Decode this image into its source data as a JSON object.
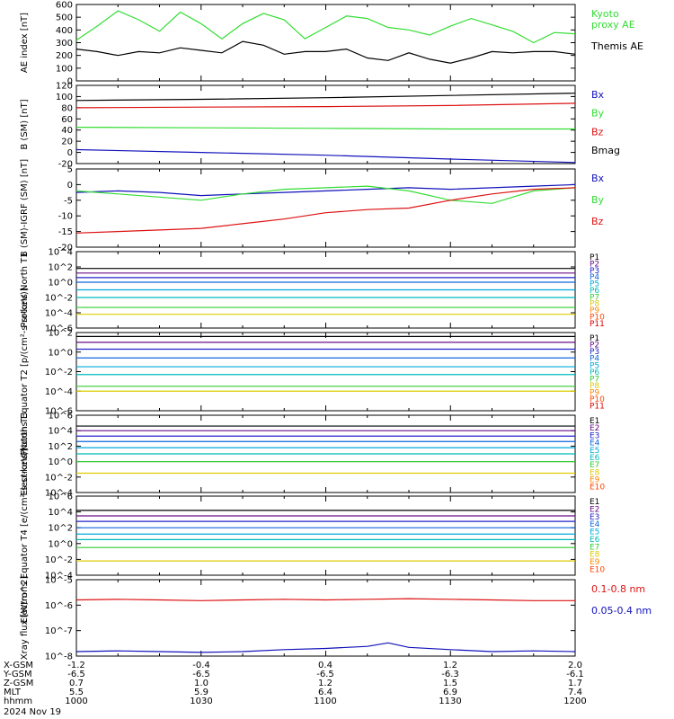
{
  "colors": {
    "black": "#000000",
    "green": "#33dd33",
    "red": "#dd1111",
    "blue": "#1111bb",
    "p_palette": [
      "#000000",
      "#6a0d8a",
      "#2222cc",
      "#1166dd",
      "#00aadd",
      "#00bbbb",
      "#33cc33",
      "#ddcc00",
      "#ff8800",
      "#ff4400",
      "#dd0000",
      "#aa0000"
    ]
  },
  "footer": {
    "rows": [
      {
        "label": "X-GSM",
        "values": [
          "-1.2",
          "-0.4",
          "0.4",
          "1.2",
          "2.0"
        ]
      },
      {
        "label": "Y-GSM",
        "values": [
          "-6.5",
          "-6.5",
          "-6.5",
          "-6.3",
          "-6.1"
        ]
      },
      {
        "label": "Z-GSM",
        "values": [
          "0.7",
          "1.0",
          "1.2",
          "1.5",
          "1.7"
        ]
      },
      {
        "label": "MLT",
        "values": [
          "5.5",
          "5.9",
          "6.4",
          "6.9",
          "7.4"
        ]
      },
      {
        "label": "hhmm",
        "values": [
          "1000",
          "1030",
          "1100",
          "1130",
          "1200"
        ]
      }
    ],
    "date": "2024 Nov 19"
  },
  "chart_data": [
    {
      "type": "line",
      "ylabel": "AE index [nT]",
      "ylim": [
        0,
        600
      ],
      "yticks": [
        "0",
        "100",
        "200",
        "300",
        "400",
        "500",
        "600"
      ],
      "series": [
        {
          "name": "Kyoto proxy AE",
          "legend": [
            "Kyoto",
            "proxy AE"
          ],
          "color": "green",
          "x": [
            0,
            5,
            10,
            15,
            20,
            25,
            30,
            35,
            40,
            45,
            50,
            55,
            60,
            65,
            70,
            75,
            80,
            85,
            90,
            95,
            100,
            105,
            110,
            115,
            120
          ],
          "y": [
            320,
            430,
            550,
            480,
            390,
            540,
            450,
            330,
            450,
            530,
            480,
            330,
            420,
            510,
            490,
            420,
            400,
            360,
            430,
            490,
            440,
            390,
            300,
            380,
            370
          ]
        },
        {
          "name": "Themis AE",
          "legend": [
            "Themis AE"
          ],
          "color": "black",
          "x": [
            0,
            5,
            10,
            15,
            20,
            25,
            30,
            35,
            40,
            45,
            50,
            55,
            60,
            65,
            70,
            75,
            80,
            85,
            90,
            95,
            100,
            105,
            110,
            115,
            120
          ],
          "y": [
            250,
            230,
            200,
            230,
            220,
            260,
            240,
            220,
            310,
            280,
            210,
            230,
            230,
            250,
            180,
            160,
            220,
            170,
            140,
            180,
            230,
            220,
            230,
            230,
            210
          ]
        }
      ]
    },
    {
      "type": "line",
      "ylabel": "B (SM) [nT]",
      "ylim": [
        -20,
        120
      ],
      "yticks": [
        "-20",
        "0",
        "20",
        "40",
        "60",
        "80",
        "100",
        "120"
      ],
      "series": [
        {
          "name": "Bx",
          "color": "blue",
          "x": [
            0,
            30,
            60,
            90,
            120
          ],
          "y": [
            5,
            0,
            -5,
            -12,
            -18
          ]
        },
        {
          "name": "By",
          "color": "green",
          "x": [
            0,
            30,
            60,
            90,
            120
          ],
          "y": [
            45,
            44,
            43,
            42,
            42
          ]
        },
        {
          "name": "Bz",
          "color": "red",
          "x": [
            0,
            30,
            60,
            90,
            120
          ],
          "y": [
            80,
            81,
            82,
            84,
            88
          ]
        },
        {
          "name": "Bmag",
          "color": "black",
          "x": [
            0,
            30,
            60,
            90,
            120
          ],
          "y": [
            93,
            95,
            98,
            102,
            106
          ]
        }
      ]
    },
    {
      "type": "line",
      "ylabel": "B (SM)-IGRF (SM) [nT]",
      "ylim": [
        -20,
        5
      ],
      "yticks": [
        "-20",
        "-15",
        "-10",
        "-5",
        "0",
        "5"
      ],
      "series": [
        {
          "name": "Bx",
          "color": "blue",
          "x": [
            0,
            10,
            20,
            30,
            40,
            50,
            60,
            70,
            80,
            90,
            100,
            110,
            120
          ],
          "y": [
            -2.5,
            -2,
            -2.5,
            -3.5,
            -3,
            -2.5,
            -2,
            -1.5,
            -1,
            -1.5,
            -1,
            -0.5,
            0
          ]
        },
        {
          "name": "By",
          "color": "green",
          "x": [
            0,
            10,
            20,
            30,
            40,
            50,
            60,
            70,
            80,
            90,
            100,
            110,
            120
          ],
          "y": [
            -2,
            -3,
            -4,
            -5,
            -3,
            -1.5,
            -1,
            -0.5,
            -2,
            -5,
            -6,
            -2,
            -1
          ]
        },
        {
          "name": "Bz",
          "color": "red",
          "x": [
            0,
            10,
            20,
            30,
            40,
            50,
            60,
            70,
            80,
            90,
            100,
            110,
            120
          ],
          "y": [
            -15.5,
            -15,
            -14.5,
            -14,
            -12.5,
            -11,
            -9,
            -8,
            -7.5,
            -5,
            -3,
            -1.5,
            -1
          ]
        }
      ]
    },
    {
      "type": "line",
      "ylabel": "Protons North T1",
      "ylog": [
        -6,
        4
      ],
      "yticks": [
        "10^-6",
        "10^-4",
        "10^-2",
        "10^0",
        "10^2",
        "10^4"
      ],
      "channels": [
        "P1",
        "P2",
        "P3",
        "P4",
        "P5",
        "P6",
        "P7",
        "P8",
        "P9",
        "P10",
        "P11"
      ],
      "series": [
        {
          "name": "P1",
          "log10": 1.8
        },
        {
          "name": "P2",
          "log10": 1.2
        },
        {
          "name": "P3",
          "log10": 0.6
        },
        {
          "name": "P4",
          "log10": 0.0
        },
        {
          "name": "P5",
          "log10": -1.0
        },
        {
          "name": "P6",
          "log10": -2.0
        },
        {
          "name": "P7",
          "log10": -3.3
        },
        {
          "name": "P8",
          "log10": -4.2
        }
      ]
    },
    {
      "type": "line",
      "ylabel": "Protons Equator T2 [p/(cm²-s-sr-keV)]",
      "ylog": [
        -6,
        2
      ],
      "yticks": [
        "10^-6",
        "10^-4",
        "10^-2",
        "10^0",
        "10^2"
      ],
      "channels": [
        "P1",
        "P2",
        "P3",
        "P4",
        "P5",
        "P6",
        "P7",
        "P8",
        "P9",
        "P10",
        "P11"
      ],
      "series": [
        {
          "name": "P1",
          "log10": 1.6
        },
        {
          "name": "P2",
          "log10": 1.0
        },
        {
          "name": "P3",
          "log10": 0.3
        },
        {
          "name": "P4",
          "log10": -0.6
        },
        {
          "name": "P5",
          "log10": -1.5
        },
        {
          "name": "P6",
          "log10": -2.3
        },
        {
          "name": "P7",
          "log10": -3.5
        },
        {
          "name": "P8",
          "log10": -4.0
        }
      ]
    },
    {
      "type": "line",
      "ylabel": "Electrons North T3",
      "ylog": [
        -4,
        6
      ],
      "yticks": [
        "10^-4",
        "10^-2",
        "10^0",
        "10^2",
        "10^4",
        "10^6"
      ],
      "channels": [
        "E1",
        "E2",
        "E3",
        "E4",
        "E5",
        "E6",
        "E7",
        "E8",
        "E9",
        "E10"
      ],
      "series": [
        {
          "name": "E1",
          "log10": 4.6
        },
        {
          "name": "E2",
          "log10": 4.0
        },
        {
          "name": "E3",
          "log10": 3.3
        },
        {
          "name": "E4",
          "log10": 2.6
        },
        {
          "name": "E5",
          "log10": 1.8
        },
        {
          "name": "E6",
          "log10": 1.0
        },
        {
          "name": "E7",
          "log10": 0.0
        },
        {
          "name": "E8",
          "log10": -1.5
        }
      ]
    },
    {
      "type": "line",
      "ylabel": "Electrons Equator T4 [e/(cm²-s-sr-keV)]",
      "ylog": [
        -4,
        6
      ],
      "yticks": [
        "10^-4",
        "10^-2",
        "10^0",
        "10^2",
        "10^4",
        "10^6"
      ],
      "channels": [
        "E1",
        "E2",
        "E3",
        "E4",
        "E5",
        "E6",
        "E7",
        "E8",
        "E9",
        "E10"
      ],
      "series": [
        {
          "name": "E1",
          "log10": 4.2
        },
        {
          "name": "E2",
          "log10": 3.5
        },
        {
          "name": "E3",
          "log10": 2.8
        },
        {
          "name": "E4",
          "log10": 2.0
        },
        {
          "name": "E5",
          "log10": 1.2
        },
        {
          "name": "E6",
          "log10": 0.5
        },
        {
          "name": "E7",
          "log10": -0.5
        },
        {
          "name": "E8",
          "log10": -2.2
        }
      ]
    },
    {
      "type": "line",
      "ylabel": "Xray flux [W/m^2]",
      "ylog": [
        -8,
        -5
      ],
      "yticks": [
        "10^-8",
        "10^-7",
        "10^-6",
        "10^-5"
      ],
      "series": [
        {
          "name": "0.1-0.8 nm",
          "color": "red",
          "x": [
            0,
            10,
            20,
            30,
            40,
            50,
            60,
            70,
            80,
            90,
            100,
            110,
            120
          ],
          "y": [
            1.6e-06,
            1.7e-06,
            1.6e-06,
            1.5e-06,
            1.6e-06,
            1.7e-06,
            1.6e-06,
            1.7e-06,
            1.8e-06,
            1.7e-06,
            1.6e-06,
            1.5e-06,
            1.5e-06
          ]
        },
        {
          "name": "0.05-0.4 nm",
          "color": "blue",
          "x": [
            0,
            10,
            20,
            30,
            40,
            50,
            60,
            70,
            75,
            80,
            90,
            100,
            110,
            120
          ],
          "y": [
            1.5e-08,
            1.6e-08,
            1.5e-08,
            1.4e-08,
            1.5e-08,
            1.8e-08,
            2e-08,
            2.4e-08,
            3.3e-08,
            2.2e-08,
            1.8e-08,
            1.5e-08,
            1.6e-08,
            1.5e-08
          ]
        }
      ]
    }
  ]
}
